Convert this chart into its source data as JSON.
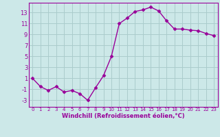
{
  "x": [
    0,
    1,
    2,
    3,
    4,
    5,
    6,
    7,
    8,
    9,
    10,
    11,
    12,
    13,
    14,
    15,
    16,
    17,
    18,
    19,
    20,
    21,
    22,
    23
  ],
  "y": [
    1,
    -0.5,
    -1.2,
    -0.5,
    -1.5,
    -1.2,
    -1.8,
    -3.0,
    -0.7,
    1.5,
    5.0,
    11.0,
    12.0,
    13.2,
    13.5,
    14.0,
    13.3,
    11.5,
    10.0,
    10.0,
    9.8,
    9.7,
    9.2,
    8.8
  ],
  "line_color": "#990099",
  "marker": "D",
  "marker_size": 2.5,
  "bg_color": "#cce8e8",
  "grid_color": "#aacccc",
  "xlabel": "Windchill (Refroidissement éolien,°C)",
  "ylabel": "",
  "xlim": [
    -0.5,
    23.5
  ],
  "ylim": [
    -4.2,
    14.8
  ],
  "yticks": [
    -3,
    -1,
    1,
    3,
    5,
    7,
    9,
    11,
    13
  ],
  "xticks": [
    0,
    1,
    2,
    3,
    4,
    5,
    6,
    7,
    8,
    9,
    10,
    11,
    12,
    13,
    14,
    15,
    16,
    17,
    18,
    19,
    20,
    21,
    22,
    23
  ],
  "tick_color": "#990099",
  "label_color": "#990099",
  "axis_color": "#990099",
  "linewidth": 1.0,
  "xlabel_fontsize": 6.0,
  "ytick_fontsize": 6.0,
  "xtick_fontsize": 5.0
}
